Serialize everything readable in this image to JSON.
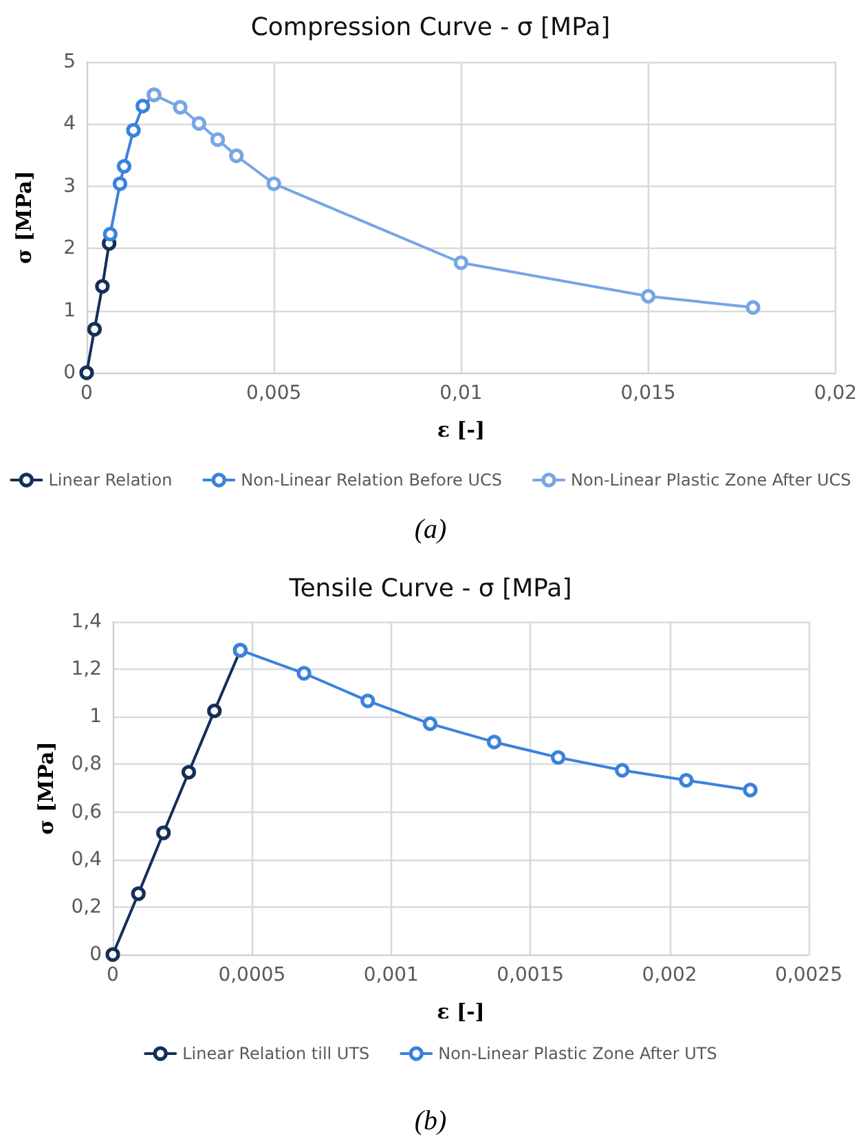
{
  "chart_data": [
    {
      "type": "line",
      "title": "Compression Curve - σ [MPa]",
      "xlabel": "ε [-]",
      "ylabel": "σ [MPa]",
      "annotations": [
        "(a)"
      ],
      "series": [
        {
          "name": "Linear Relation",
          "color": "#142f5a",
          "x": [
            0,
            0.00021,
            0.00042,
            0.0006
          ],
          "values": [
            0,
            0.7,
            1.39,
            2.08
          ]
        },
        {
          "name": "Non-Linear Relation Before UCS",
          "color": "#3a82dc",
          "x": [
            0.00063,
            0.00089,
            0.001,
            0.00125,
            0.0015,
            0.0018
          ],
          "values": [
            2.23,
            3.04,
            3.32,
            3.9,
            4.29,
            4.47
          ]
        },
        {
          "name": "Non-Linear Plastic Zone After UCS",
          "color": "#77a5e6",
          "x": [
            0.0018,
            0.0025,
            0.003,
            0.0035,
            0.004,
            0.005,
            0.01,
            0.015,
            0.0178
          ],
          "values": [
            4.47,
            4.27,
            4.01,
            3.75,
            3.49,
            3.04,
            1.77,
            1.23,
            1.05
          ]
        }
      ],
      "xlim": [
        0,
        0.02
      ],
      "xticks": [
        0,
        {
          "value": 0.005,
          "label": "0,005"
        },
        {
          "value": 0.01,
          "label": "0,01"
        },
        {
          "value": 0.015,
          "label": "0,015"
        },
        {
          "value": 0.02,
          "label": "0,02"
        }
      ],
      "ylim": [
        0,
        5
      ],
      "yticks": [
        0,
        1,
        2,
        3,
        4,
        5
      ],
      "grid": true,
      "legend": "bottom",
      "marker": "circle",
      "line_style": "solid"
    },
    {
      "type": "line",
      "title": "Tensile Curve - σ [MPa]",
      "xlabel": "ε [-]",
      "ylabel": "σ [MPa]",
      "annotations": [
        "(b)"
      ],
      "series": [
        {
          "name": "Linear Relation till UTS",
          "color": "#142f5a",
          "x": [
            0,
            9.2e-05,
            0.000182,
            0.000273,
            0.000365,
            0.000458
          ],
          "values": [
            0,
            0.256,
            0.512,
            0.767,
            1.025,
            1.28
          ]
        },
        {
          "name": "Non-Linear Plastic Zone After UTS",
          "color": "#3a82dc",
          "x": [
            0.000458,
            0.000687,
            0.000916,
            0.00114,
            0.00137,
            0.0016,
            0.00183,
            0.00206,
            0.00229
          ],
          "values": [
            1.28,
            1.183,
            1.067,
            0.971,
            0.894,
            0.829,
            0.775,
            0.733,
            0.692
          ]
        }
      ],
      "xlim": [
        0,
        0.0025
      ],
      "xticks": [
        0,
        {
          "value": 0.0005,
          "label": "0,0005"
        },
        {
          "value": 0.001,
          "label": "0,001"
        },
        {
          "value": 0.0015,
          "label": "0,0015"
        },
        {
          "value": 0.002,
          "label": "0,002"
        },
        {
          "value": 0.0025,
          "label": "0,0025"
        }
      ],
      "ylim": [
        0,
        1.4
      ],
      "yticks": [
        0,
        {
          "value": 0.2,
          "label": "0,2"
        },
        {
          "value": 0.4,
          "label": "0,4"
        },
        {
          "value": 0.6,
          "label": "0,6"
        },
        {
          "value": 0.8,
          "label": "0,8"
        },
        1,
        {
          "value": 1.2,
          "label": "1,2"
        },
        {
          "value": 1.4,
          "label": "1,4"
        }
      ],
      "grid": true,
      "legend": "bottom",
      "marker": "circle",
      "line_style": "solid"
    }
  ]
}
